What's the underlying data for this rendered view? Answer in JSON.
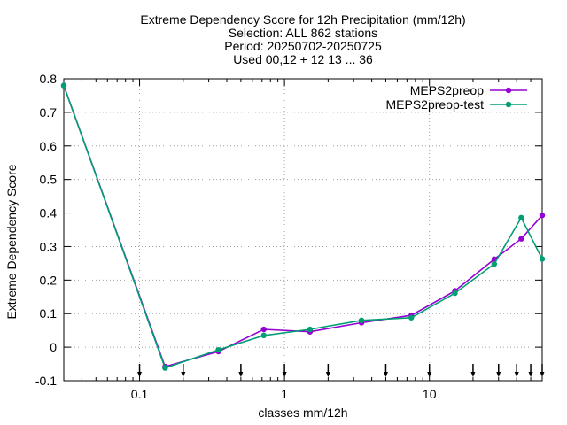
{
  "chart_data": {
    "type": "line",
    "title_lines": [
      "Extreme Dependency Score  for 12h Precipitation (mm/12h)",
      "Selection: ALL    862 stations",
      "Period: 20250702-20250725",
      "Used 00,12 + 12 13 ... 36"
    ],
    "xlabel": "classes mm/12h",
    "ylabel": "Extreme Dependency Score",
    "x_scale": "log",
    "xlim": [
      0.03,
      60
    ],
    "ylim": [
      -0.1,
      0.8
    ],
    "x_ticks": [
      {
        "value": 0.1,
        "label": "0.1"
      },
      {
        "value": 1,
        "label": "1"
      },
      {
        "value": 10,
        "label": "10"
      }
    ],
    "y_ticks": [
      {
        "value": -0.1,
        "label": "-0.1"
      },
      {
        "value": 0,
        "label": "0"
      },
      {
        "value": 0.1,
        "label": "0.1"
      },
      {
        "value": 0.2,
        "label": "0.2"
      },
      {
        "value": 0.3,
        "label": "0.3"
      },
      {
        "value": 0.4,
        "label": "0.4"
      },
      {
        "value": 0.5,
        "label": "0.5"
      },
      {
        "value": 0.6,
        "label": "0.6"
      },
      {
        "value": 0.7,
        "label": "0.7"
      },
      {
        "value": 0.8,
        "label": "0.8"
      }
    ],
    "grid": true,
    "legend_position": "top-right",
    "class_markers": [
      0.1,
      0.2,
      0.5,
      1,
      2,
      5,
      10,
      20,
      30,
      40,
      50,
      60
    ],
    "series": [
      {
        "name": "MEPS2preop",
        "color": "#9400d3",
        "points": [
          [
            0.03,
            0.78
          ],
          [
            0.15,
            -0.058
          ],
          [
            0.35,
            -0.013
          ],
          [
            0.72,
            0.053
          ],
          [
            1.5,
            0.046
          ],
          [
            3.4,
            0.073
          ],
          [
            7.5,
            0.095
          ],
          [
            15,
            0.168
          ],
          [
            28,
            0.262
          ],
          [
            43,
            0.323
          ],
          [
            60,
            0.393
          ]
        ]
      },
      {
        "name": "MEPS2preop-test",
        "color": "#009e73",
        "points": [
          [
            0.03,
            0.78
          ],
          [
            0.15,
            -0.062
          ],
          [
            0.35,
            -0.008
          ],
          [
            0.72,
            0.035
          ],
          [
            1.5,
            0.053
          ],
          [
            3.4,
            0.08
          ],
          [
            7.5,
            0.088
          ],
          [
            15,
            0.161
          ],
          [
            28,
            0.248
          ],
          [
            43,
            0.386
          ],
          [
            60,
            0.263
          ]
        ]
      }
    ]
  }
}
